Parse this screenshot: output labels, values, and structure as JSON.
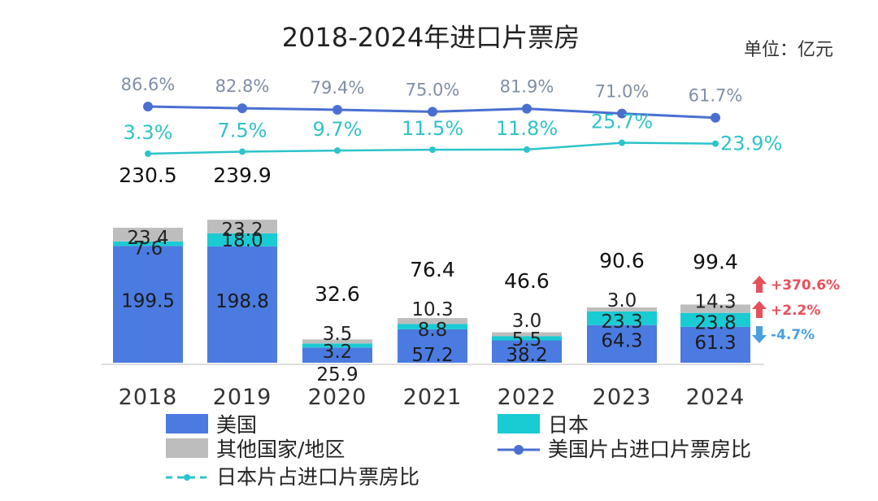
{
  "chart_data": {
    "type": "bar",
    "stacked": true,
    "title": "2018-2024年进口片票房",
    "unit": "单位：亿元",
    "categories": [
      "2018",
      "2019",
      "2020",
      "2021",
      "2022",
      "2023",
      "2024"
    ],
    "totals": [
      "230.5",
      "239.9",
      "32.6",
      "76.4",
      "46.6",
      "90.6",
      "99.4"
    ],
    "series": [
      {
        "name": "美国",
        "color": "#4b7be0",
        "values": [
          199.5,
          198.8,
          25.9,
          57.2,
          38.2,
          64.3,
          61.3
        ]
      },
      {
        "name": "日本",
        "color": "#19cbd3",
        "values": [
          7.6,
          18.0,
          3.2,
          8.8,
          5.5,
          23.3,
          23.8
        ]
      },
      {
        "name": "其他国家/地区",
        "color": "#bdbdbd",
        "values": [
          23.4,
          23.2,
          3.5,
          10.3,
          3.0,
          3.0,
          14.3
        ]
      }
    ],
    "lines": [
      {
        "name": "美国片占进口片票房比",
        "color": "#4a6fd1",
        "labels": [
          "86.6%",
          "82.8%",
          "79.4%",
          "75.0%",
          "81.9%",
          "71.0%",
          "61.7%"
        ],
        "values": [
          86.6,
          82.8,
          79.4,
          75.0,
          81.9,
          71.0,
          61.7
        ]
      },
      {
        "name": "日本片占进口片票房比",
        "color": "#2cc4ca",
        "labels": [
          "3.3%",
          "7.5%",
          "9.7%",
          "11.5%",
          "11.8%",
          "25.7%",
          "23.9%"
        ],
        "values": [
          3.3,
          7.5,
          9.7,
          11.5,
          11.8,
          25.7,
          23.9
        ]
      }
    ],
    "annotations_2024": [
      {
        "text": "+370.6%",
        "direction": "up",
        "color": "#e8505b",
        "series": "其他国家/地区"
      },
      {
        "text": "+2.2%",
        "direction": "up",
        "color": "#e8505b",
        "series": "日本"
      },
      {
        "text": "-4.7%",
        "direction": "down",
        "color": "#4a9fe0",
        "series": "美国"
      }
    ]
  }
}
